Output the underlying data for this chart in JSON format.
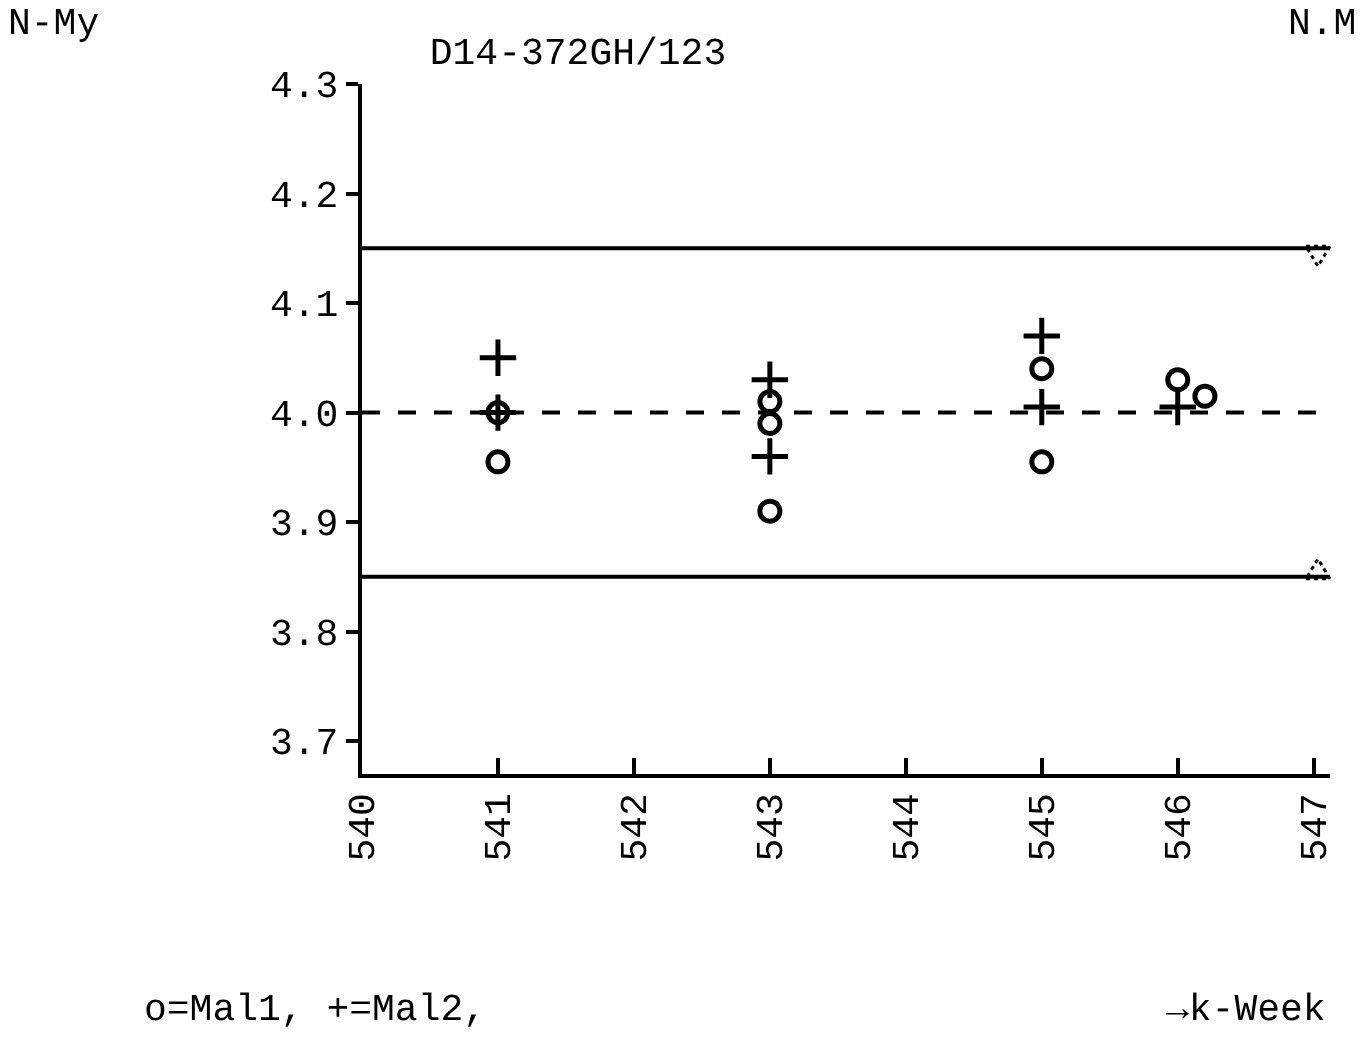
{
  "chart_data": {
    "type": "scatter",
    "title": "D14-372GH/123",
    "xlabel": "→k-Week",
    "annotations": [
      "N-My",
      "N.M",
      "o=Mal1, +=Mal2,"
    ],
    "xlim": [
      540,
      547.12
    ],
    "xticks": [
      540,
      541,
      542,
      543,
      544,
      545,
      546,
      547
    ],
    "ylim": [
      3.67,
      4.3
    ],
    "yticks": [
      {
        "value": 3.7,
        "label": "3.7"
      },
      {
        "value": 3.8,
        "label": "3.8"
      },
      {
        "value": 3.9,
        "label": "3.9"
      },
      {
        "value": 4.0,
        "label": "4.0"
      },
      {
        "value": 4.1,
        "label": "4.1"
      },
      {
        "value": 4.2,
        "label": "4.2"
      },
      {
        "value": 4.3,
        "label": "4.3"
      }
    ],
    "grid": false,
    "series": [
      {
        "color": "#000000",
        "marker": "circle",
        "x": [
          541,
          541,
          543,
          543,
          543,
          545,
          545,
          546,
          546.2
        ],
        "values": [
          4.0,
          3.955,
          4.01,
          3.99,
          3.91,
          4.04,
          3.955,
          4.03,
          4.015
        ]
      },
      {
        "color": "#000000",
        "marker": "cross",
        "x": [
          541,
          541,
          543,
          543,
          545,
          545,
          546
        ],
        "values": [
          4.05,
          4.0,
          4.03,
          3.96,
          4.07,
          4.005,
          4.005
        ]
      }
    ],
    "ref_lines": [
      {
        "axis": "y",
        "value": 4.15,
        "color": "#000000",
        "line_style": "solid"
      },
      {
        "axis": "y",
        "value": 4.0,
        "color": "#000000",
        "line_style": "dashed"
      },
      {
        "axis": "y",
        "value": 3.85,
        "color": "#000000",
        "line_style": "solid"
      }
    ]
  }
}
